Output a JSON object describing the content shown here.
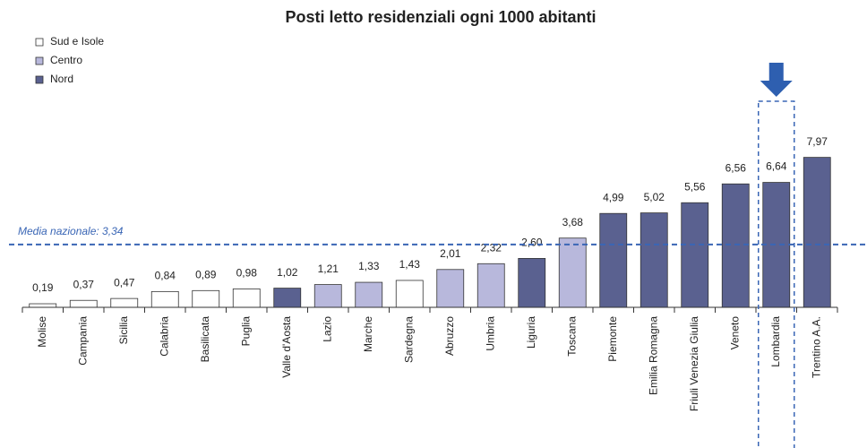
{
  "chart_data": {
    "type": "bar",
    "title": "Posti letto residenziali ogni 1000 abitanti",
    "categories": [
      "Molise",
      "Campania",
      "Sicilia",
      "Calabria",
      "Basilicata",
      "Puglia",
      "Valle d'Aosta",
      "Lazio",
      "Marche",
      "Sardegna",
      "Abruzzo",
      "Umbria",
      "Liguria",
      "Toscana",
      "Piemonte",
      "Emilia Romagna",
      "Friuli Venezia Giulia",
      "Veneto",
      "Lombardia",
      "Trentino A.A."
    ],
    "values": [
      0.19,
      0.37,
      0.47,
      0.84,
      0.89,
      0.98,
      1.02,
      1.21,
      1.33,
      1.43,
      2.01,
      2.32,
      2.6,
      3.68,
      4.99,
      5.02,
      5.56,
      6.56,
      6.64,
      7.97
    ],
    "value_labels": [
      "0,19",
      "0,37",
      "0,47",
      "0,84",
      "0,89",
      "0,98",
      "1,02",
      "1,21",
      "1,33",
      "1,43",
      "2,01",
      "2,32",
      "2,60",
      "3,68",
      "4,99",
      "5,02",
      "5,56",
      "6,56",
      "6,64",
      "7,97"
    ],
    "colors": [
      "#ffffff",
      "#ffffff",
      "#ffffff",
      "#ffffff",
      "#ffffff",
      "#ffffff",
      "#5a6190",
      "#b8b8dc",
      "#b8b8dc",
      "#ffffff",
      "#b8b8dc",
      "#b8b8dc",
      "#5a6190",
      "#b8b8dc",
      "#5a6190",
      "#5a6190",
      "#5a6190",
      "#5a6190",
      "#5a6190",
      "#5a6190"
    ],
    "legend": [
      {
        "name": "Sud e Isole",
        "color": "#ffffff"
      },
      {
        "name": "Centro",
        "color": "#b8b8dc"
      },
      {
        "name": "Nord",
        "color": "#5a6190"
      }
    ],
    "reference_line": {
      "value": 3.34,
      "label": "Media nazionale: 3,34"
    },
    "highlight_index": 18,
    "ylim": [
      0,
      10
    ]
  }
}
